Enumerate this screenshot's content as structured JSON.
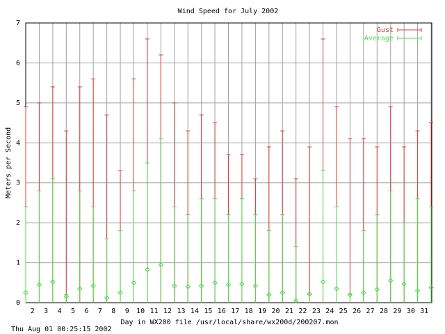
{
  "chart_data": {
    "type": "errorbar",
    "title": "Wind Speed for July 2002",
    "x_label": "Day in WX200 file /usr/local/share/wx200d/200207.mon",
    "y_label": "Meters per Second",
    "timestamp": "Thu Aug 01 00:25:15 2002",
    "x": [
      1,
      2,
      3,
      4,
      5,
      6,
      7,
      8,
      9,
      10,
      11,
      12,
      13,
      14,
      15,
      16,
      17,
      18,
      19,
      20,
      21,
      22,
      23,
      24,
      25,
      26,
      27,
      28,
      29,
      30,
      31
    ],
    "xlim": [
      1,
      31.05
    ],
    "xticks": [
      2,
      3,
      4,
      5,
      6,
      7,
      8,
      9,
      10,
      11,
      12,
      13,
      14,
      15,
      16,
      17,
      18,
      19,
      20,
      21,
      22,
      23,
      24,
      25,
      26,
      27,
      28,
      29,
      30,
      31
    ],
    "ylim": [
      0,
      7
    ],
    "yticks": [
      0,
      1,
      2,
      3,
      4,
      5,
      6,
      7
    ],
    "grid": true,
    "legend": "top-right",
    "series": [
      {
        "name": "Gust",
        "color": "#e03c3c",
        "values": [
          4.9,
          5.0,
          5.4,
          4.3,
          5.4,
          5.6,
          4.7,
          3.3,
          5.6,
          6.6,
          6.2,
          5.0,
          4.3,
          4.7,
          4.5,
          3.7,
          3.7,
          3.1,
          3.9,
          4.3,
          3.1,
          3.9,
          6.6,
          4.9,
          4.1,
          4.1,
          3.9,
          4.9,
          3.9,
          4.3,
          4.5
        ]
      },
      {
        "name": "Average",
        "color": "#50e050",
        "values": [
          0.25,
          0.45,
          0.52,
          0.15,
          0.35,
          0.42,
          0.12,
          0.25,
          0.5,
          0.83,
          0.95,
          0.42,
          0.4,
          0.42,
          0.5,
          0.45,
          0.47,
          0.42,
          0.2,
          0.25,
          0.05,
          0.22,
          0.52,
          0.35,
          0.2,
          0.25,
          0.33,
          0.55,
          0.47,
          0.3,
          0.38
        ],
        "high": [
          2.4,
          2.8,
          3.1,
          0.2,
          2.8,
          2.4,
          1.6,
          1.8,
          2.8,
          3.5,
          4.1,
          2.4,
          2.2,
          2.6,
          2.6,
          2.2,
          2.6,
          2.2,
          1.8,
          2.2,
          1.4,
          0.2,
          3.3,
          2.4,
          0.2,
          1.8,
          2.2,
          2.8,
          2.0,
          2.6,
          2.4
        ]
      }
    ]
  }
}
